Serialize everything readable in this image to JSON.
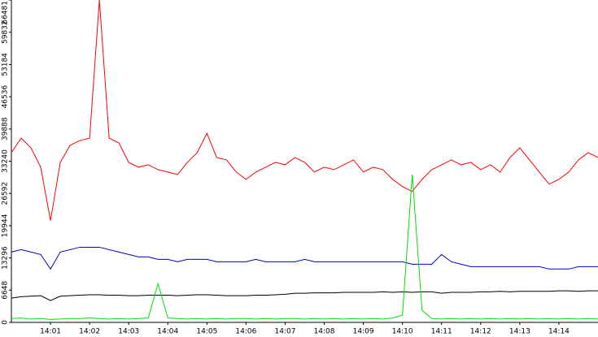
{
  "chart_data": {
    "type": "line",
    "categories": [
      null,
      null,
      null,
      null,
      "14:01",
      null,
      null,
      null,
      "14:02",
      null,
      null,
      null,
      "14:03",
      null,
      null,
      null,
      "14:04",
      null,
      null,
      null,
      "14:05",
      null,
      null,
      null,
      "14:06",
      null,
      null,
      null,
      "14:07",
      null,
      null,
      null,
      "14:08",
      null,
      null,
      null,
      "14:09",
      null,
      null,
      null,
      "14:10",
      null,
      null,
      null,
      "14:11",
      null,
      null,
      null,
      "14:12",
      null,
      null,
      null,
      "14:13",
      null,
      null,
      null,
      "14:14",
      null,
      null,
      null,
      null
    ],
    "series": [
      {
        "color": "#ff0000",
        "values": [
          35000,
          38000,
          36000,
          32000,
          21000,
          33000,
          36500,
          37500,
          38000,
          66481,
          38000,
          37000,
          33000,
          32000,
          32500,
          31500,
          31000,
          30500,
          33000,
          35000,
          39000,
          34000,
          33500,
          31000,
          29500,
          31000,
          32000,
          33000,
          32500,
          34000,
          33000,
          31000,
          32000,
          31500,
          32500,
          33500,
          31000,
          32000,
          31500,
          29500,
          28000,
          27000,
          29500,
          31500,
          32500,
          33500,
          32500,
          33000,
          31500,
          32500,
          31000,
          34000,
          36000,
          33500,
          31000,
          28500,
          29500,
          31000,
          33500,
          35000,
          34000
        ]
      },
      {
        "color": "#0000c0",
        "values": [
          14500,
          15000,
          14500,
          14000,
          11000,
          14500,
          15000,
          15500,
          15500,
          15500,
          15000,
          14500,
          14000,
          13500,
          13500,
          13000,
          13000,
          12500,
          13000,
          13000,
          13000,
          12500,
          12500,
          12500,
          12500,
          13000,
          12500,
          12500,
          12500,
          12500,
          13000,
          12500,
          12500,
          12500,
          12500,
          12500,
          12500,
          12500,
          12500,
          12500,
          12500,
          12000,
          12000,
          12000,
          14000,
          12500,
          12000,
          11500,
          11500,
          11500,
          11500,
          11500,
          11500,
          11500,
          11500,
          11000,
          11000,
          11000,
          11500,
          11500,
          11500
        ]
      },
      {
        "color": "#000000",
        "values": [
          5000,
          5300,
          5400,
          5500,
          4500,
          5400,
          5500,
          5600,
          5700,
          5700,
          5600,
          5600,
          5500,
          5500,
          5600,
          5600,
          5600,
          5500,
          5600,
          5700,
          5700,
          5600,
          5500,
          5500,
          5500,
          5600,
          5600,
          5700,
          5800,
          6000,
          6000,
          6100,
          6100,
          6100,
          6200,
          6200,
          6200,
          6200,
          6300,
          6200,
          6300,
          6200,
          6300,
          6300,
          6000,
          6200,
          6200,
          6200,
          6300,
          6300,
          6400,
          6300,
          6400,
          6400,
          6400,
          6400,
          6500,
          6500,
          6400,
          6500,
          6500
        ]
      },
      {
        "color": "#00e000",
        "values": [
          800,
          900,
          700,
          800,
          600,
          700,
          800,
          800,
          900,
          800,
          700,
          800,
          700,
          800,
          900,
          8000,
          900,
          800,
          700,
          800,
          700,
          800,
          700,
          800,
          800,
          700,
          800,
          700,
          800,
          800,
          700,
          800,
          700,
          800,
          700,
          800,
          700,
          800,
          700,
          900,
          1500,
          30500,
          2500,
          800,
          700,
          800,
          700,
          800,
          700,
          800,
          700,
          800,
          700,
          800,
          700,
          800,
          700,
          800,
          700,
          800,
          700
        ]
      }
    ],
    "ylim": [
      0,
      66481
    ],
    "yticks": [
      0,
      6648,
      13296,
      19944,
      26592,
      33240,
      39888,
      46536,
      53184,
      59832,
      66481
    ]
  }
}
